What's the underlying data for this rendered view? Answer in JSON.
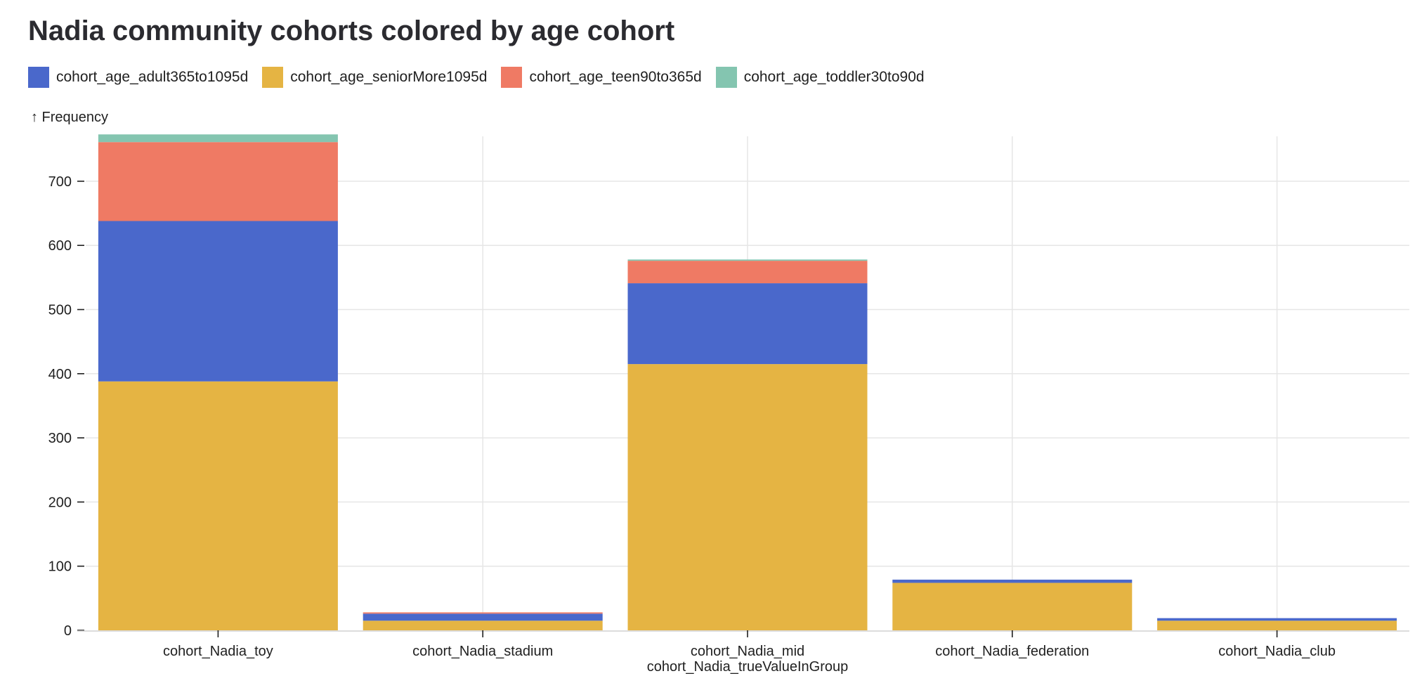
{
  "chart_data": {
    "type": "bar",
    "stacked": true,
    "title": "Nadia community cohorts colored by age cohort",
    "ylabel": "↑ Frequency",
    "xlabel": "",
    "ylim": [
      0,
      770
    ],
    "yticks": [
      0,
      100,
      200,
      300,
      400,
      500,
      600,
      700
    ],
    "grid": true,
    "legend_position": "top-left",
    "categories": [
      [
        "cohort_Nadia_toy"
      ],
      [
        "cohort_Nadia_stadium"
      ],
      [
        "cohort_Nadia_mid",
        "cohort_Nadia_trueValueInGroup"
      ],
      [
        "cohort_Nadia_federation"
      ],
      [
        "cohort_Nadia_club"
      ]
    ],
    "series": [
      {
        "name": "cohort_age_seniorMore1095d",
        "color": "#e5b443",
        "values": [
          388,
          15,
          415,
          74,
          15
        ]
      },
      {
        "name": "cohort_age_adult365to1095d",
        "color": "#4a68cb",
        "values": [
          250,
          11,
          126,
          5,
          4
        ]
      },
      {
        "name": "cohort_age_teen90to365d",
        "color": "#ef7a64",
        "values": [
          123,
          2,
          35,
          0,
          0
        ]
      },
      {
        "name": "cohort_age_toddler30to90d",
        "color": "#84c5b0",
        "values": [
          12,
          0,
          2,
          0,
          0
        ]
      }
    ],
    "legend": [
      {
        "name": "cohort_age_adult365to1095d",
        "color": "#4a68cb"
      },
      {
        "name": "cohort_age_seniorMore1095d",
        "color": "#e5b443"
      },
      {
        "name": "cohort_age_teen90to365d",
        "color": "#ef7a64"
      },
      {
        "name": "cohort_age_toddler30to90d",
        "color": "#84c5b0"
      }
    ]
  }
}
